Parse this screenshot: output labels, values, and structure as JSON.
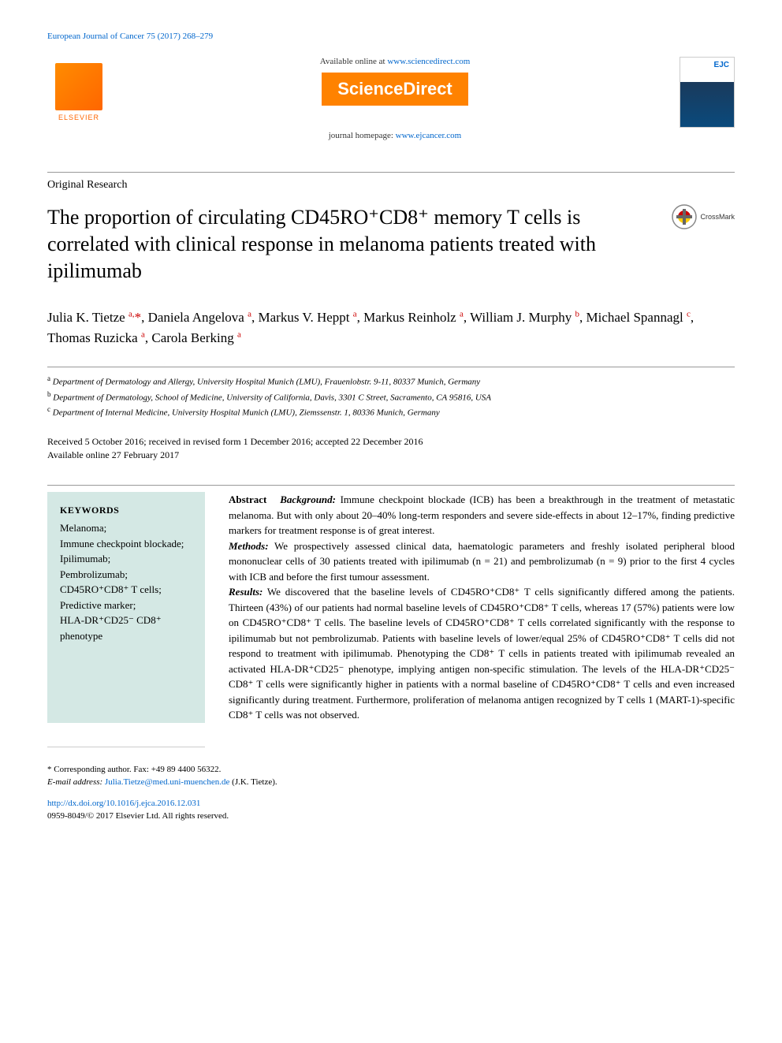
{
  "journal_reference": "European Journal of Cancer 75 (2017) 268–279",
  "banner": {
    "available_text": "Available online at ",
    "available_url": "www.sciencedirect.com",
    "sciencedirect": "ScienceDirect",
    "homepage_label": "journal homepage: ",
    "homepage_url": "www.ejcancer.com",
    "elsevier": "ELSEVIER",
    "cover_abbrev": "EJC"
  },
  "article_type": "Original Research",
  "title": "The proportion of circulating CD45RO⁺CD8⁺ memory T cells is correlated with clinical response in melanoma patients treated with ipilimumab",
  "crossmark": "CrossMark",
  "authors_html": "Julia K. Tietze <sup>a,</sup><span class='corr'>*</span>, Daniela Angelova <sup>a</sup>, Markus V. Heppt <sup>a</sup>, Markus Reinholz <sup>a</sup>, William J. Murphy <sup>b</sup>, Michael Spannagl <sup>c</sup>, Thomas Ruzicka <sup>a</sup>, Carola Berking <sup>a</sup>",
  "affiliations": [
    {
      "sup": "a",
      "text": "Department of Dermatology and Allergy, University Hospital Munich (LMU), Frauenlobstr. 9-11, 80337 Munich, Germany"
    },
    {
      "sup": "b",
      "text": "Department of Dermatology, School of Medicine, University of California, Davis, 3301 C Street, Sacramento, CA 95816, USA"
    },
    {
      "sup": "c",
      "text": "Department of Internal Medicine, University Hospital Munich (LMU), Ziemssenstr. 1, 80336 Munich, Germany"
    }
  ],
  "dates": {
    "line1": "Received 5 October 2016; received in revised form 1 December 2016; accepted 22 December 2016",
    "line2": "Available online 27 February 2017"
  },
  "keywords": {
    "title": "KEYWORDS",
    "items": "Melanoma;\nImmune checkpoint blockade;\nIpilimumab;\nPembrolizumab;\nCD45RO⁺CD8⁺ T cells;\nPredictive marker;\nHLA-DR⁺CD25⁻ CD8⁺ phenotype"
  },
  "abstract": {
    "label": "Abstract",
    "background_label": "Background:",
    "background": "Immune checkpoint blockade (ICB) has been a breakthrough in the treatment of metastatic melanoma. But with only about 20–40% long-term responders and severe side-effects in about 12–17%, finding predictive markers for treatment response is of great interest.",
    "methods_label": "Methods:",
    "methods": "We prospectively assessed clinical data, haematologic parameters and freshly isolated peripheral blood mononuclear cells of 30 patients treated with ipilimumab (n = 21) and pembrolizumab (n = 9) prior to the first 4 cycles with ICB and before the first tumour assessment.",
    "results_label": "Results:",
    "results": "We discovered that the baseline levels of CD45RO⁺CD8⁺ T cells significantly differed among the patients. Thirteen (43%) of our patients had normal baseline levels of CD45RO⁺CD8⁺ T cells, whereas 17 (57%) patients were low on CD45RO⁺CD8⁺ T cells. The baseline levels of CD45RO⁺CD8⁺ T cells correlated significantly with the response to ipilimumab but not pembrolizumab. Patients with baseline levels of lower/equal 25% of CD45RO⁺CD8⁺ T cells did not respond to treatment with ipilimumab. Phenotyping the CD8⁺ T cells in patients treated with ipilimumab revealed an activated HLA-DR⁺CD25⁻ phenotype, implying antigen non-specific stimulation. The levels of the HLA-DR⁺CD25⁻ CD8⁺ T cells were significantly higher in patients with a normal baseline of CD45RO⁺CD8⁺ T cells and even increased significantly during treatment. Furthermore, proliferation of melanoma antigen recognized by T cells 1 (MART-1)-specific CD8⁺ T cells was not observed."
  },
  "footer": {
    "corr_label": "* Corresponding author.",
    "corr_fax": "Fax: +49 89 4400 56322.",
    "email_label": "E-mail address:",
    "email": "Julia.Tietze@med.uni-muenchen.de",
    "email_name": "(J.K. Tietze).",
    "doi": "http://dx.doi.org/10.1016/j.ejca.2016.12.031",
    "copyright": "0959-8049/© 2017 Elsevier Ltd. All rights reserved."
  },
  "colors": {
    "link": "#0066cc",
    "elsevier_orange": "#ff6600",
    "sd_orange": "#ff8200",
    "keywords_bg": "#d4e8e4",
    "sup_red": "#cc0000"
  }
}
